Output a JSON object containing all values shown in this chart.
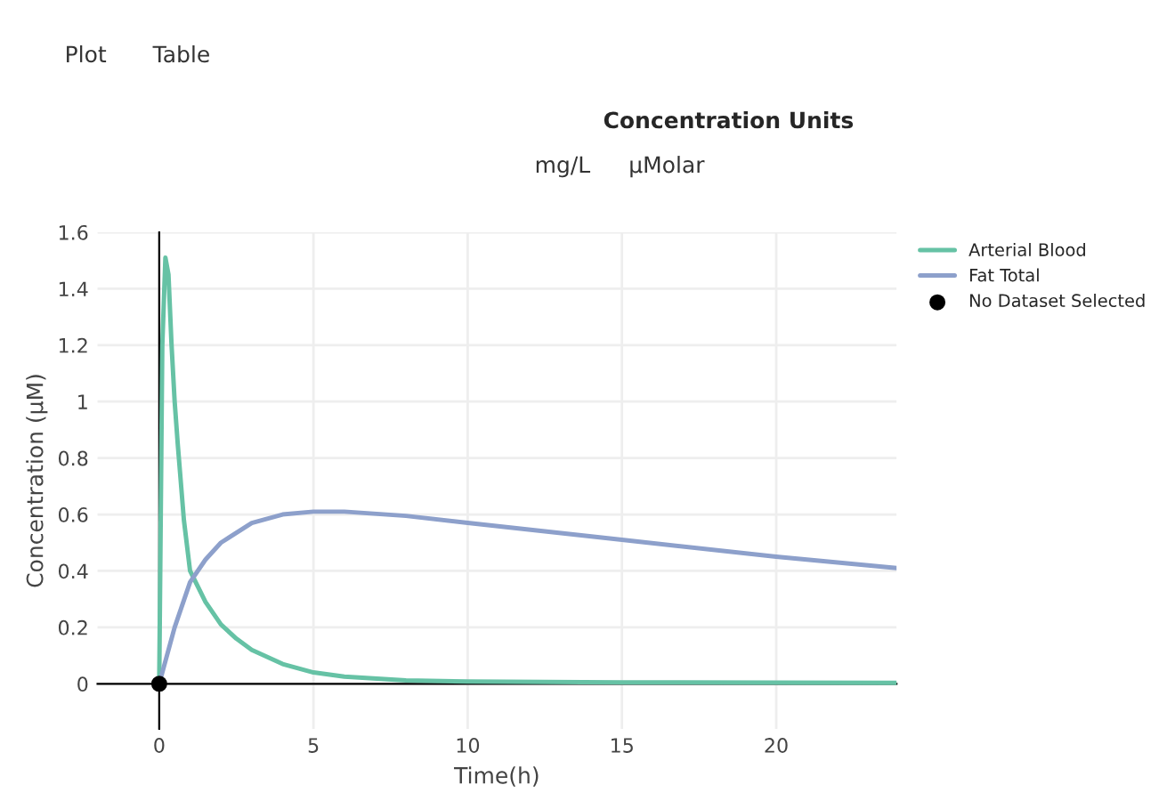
{
  "chart_data": {
    "type": "line",
    "title": "Concentration Units",
    "xlabel": "Time(h)",
    "ylabel": "Concentration (μM)",
    "annotations": [
      "Plot",
      "Table",
      "mg/L",
      "μMolar"
    ],
    "series": [
      {
        "name": "Arterial Blood",
        "color": "#66c2a5",
        "x": [
          0,
          0.1,
          0.2,
          0.3,
          0.4,
          0.5,
          0.6,
          0.8,
          1,
          1.5,
          2,
          2.5,
          3,
          4,
          5,
          6,
          8,
          10,
          15,
          20,
          23.9
        ],
        "values": [
          0,
          1.2,
          1.51,
          1.45,
          1.2,
          1.0,
          0.85,
          0.58,
          0.4,
          0.29,
          0.21,
          0.16,
          0.12,
          0.07,
          0.04,
          0.025,
          0.012,
          0.008,
          0.005,
          0.004,
          0.003
        ]
      },
      {
        "name": "Fat Total",
        "color": "#8da0cb",
        "x": [
          0,
          0.5,
          1,
          1.5,
          2,
          3,
          4,
          5,
          6,
          8,
          10,
          15,
          20,
          23.9
        ],
        "values": [
          0,
          0.2,
          0.36,
          0.44,
          0.5,
          0.57,
          0.6,
          0.61,
          0.61,
          0.595,
          0.57,
          0.51,
          0.45,
          0.41
        ]
      },
      {
        "name": "No Dataset Selected",
        "type": "scatter",
        "marker": "circle",
        "color": "#000000",
        "x": [
          0
        ],
        "values": [
          0
        ]
      }
    ],
    "xlim": [
      -2,
      23.9
    ],
    "ylim": [
      -0.16,
      1.6
    ],
    "xticks": [
      0,
      5,
      10,
      15,
      20
    ],
    "yticks": [
      0,
      0.2,
      0.4,
      0.6,
      0.8,
      1,
      1.2,
      1.4,
      1.6
    ],
    "grid": true,
    "legend": "top right"
  }
}
